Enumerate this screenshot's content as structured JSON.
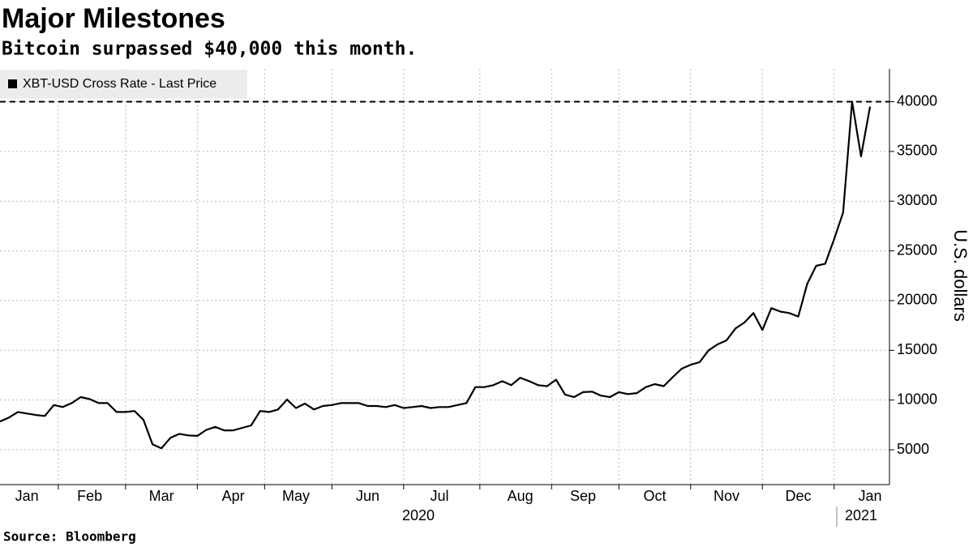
{
  "chart_data": {
    "type": "line",
    "title": "Major Milestones",
    "subtitle": "Bitcoin surpassed $40,000 this month.",
    "source": "Source: Bloomberg",
    "y_axis_label": "U.S. dollars",
    "x_group_labels": [
      "2020",
      "2021"
    ],
    "categories": [
      null,
      null,
      null,
      "Jan",
      null,
      null,
      null,
      null,
      null,
      null,
      "Feb",
      null,
      null,
      null,
      null,
      null,
      null,
      null,
      "Mar",
      null,
      null,
      null,
      null,
      null,
      null,
      null,
      "Apr",
      null,
      null,
      null,
      null,
      null,
      null,
      "May",
      null,
      null,
      null,
      null,
      null,
      null,
      null,
      "Jun",
      null,
      null,
      null,
      null,
      null,
      null,
      null,
      "Jul",
      null,
      null,
      null,
      null,
      null,
      null,
      null,
      null,
      "Aug",
      null,
      null,
      null,
      null,
      null,
      null,
      "Sep",
      null,
      null,
      null,
      null,
      null,
      null,
      null,
      "Oct",
      null,
      null,
      null,
      null,
      null,
      null,
      null,
      "Nov",
      null,
      null,
      null,
      null,
      null,
      null,
      null,
      "Dec",
      null,
      null,
      null,
      null,
      null,
      null,
      null,
      "Jan"
    ],
    "series": [
      {
        "name": "XBT-USD Cross Rate - Last Price",
        "color": "#000000",
        "values": [
          7850,
          8250,
          8800,
          8650,
          8500,
          8400,
          9500,
          9300,
          9700,
          10300,
          10100,
          9700,
          9700,
          8800,
          8800,
          8900,
          8000,
          5550,
          5150,
          6200,
          6600,
          6450,
          6400,
          7000,
          7300,
          6950,
          6950,
          7200,
          7450,
          8900,
          8800,
          9050,
          10050,
          9200,
          9650,
          9050,
          9400,
          9500,
          9700,
          9700,
          9700,
          9400,
          9400,
          9300,
          9500,
          9200,
          9300,
          9400,
          9200,
          9300,
          9300,
          9500,
          9700,
          11300,
          11300,
          11500,
          11900,
          11500,
          12250,
          11900,
          11500,
          11400,
          12050,
          10550,
          10300,
          10800,
          10850,
          10450,
          10300,
          10800,
          10600,
          10700,
          11300,
          11600,
          11400,
          12300,
          13150,
          13550,
          13800,
          15000,
          15600,
          16000,
          17200,
          17800,
          18750,
          17050,
          19250,
          18900,
          18750,
          18400,
          21700,
          23500,
          23700,
          26200,
          28850,
          40000,
          34500,
          39500
        ]
      }
    ],
    "reference_line": 40000,
    "ylim": [
      1500,
      43300
    ],
    "yticks": [
      5000,
      10000,
      15000,
      20000,
      25000,
      30000,
      35000,
      40000
    ],
    "grid": true,
    "legend": "top-left"
  }
}
